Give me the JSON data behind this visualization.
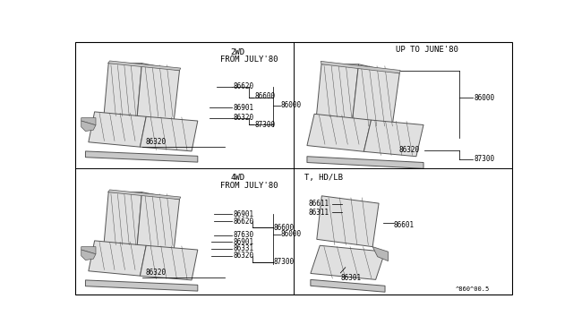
{
  "bg": "#ffffff",
  "lc": "#555555",
  "fc_seat": "#e0e0e0",
  "fc_dark": "#c8c8c8",
  "fc_arm": "#b8b8b8",
  "lw_main": 0.7,
  "lw_rib": 0.35,
  "panels": {
    "tl_label": [
      "2WD",
      "FROM JULY'80"
    ],
    "tr_label": "UP TO JUNE'80",
    "bl_label": [
      "4WD",
      "FROM JULY'80"
    ],
    "br_label": "T, HD/LB"
  },
  "footer": "^860^00.5"
}
